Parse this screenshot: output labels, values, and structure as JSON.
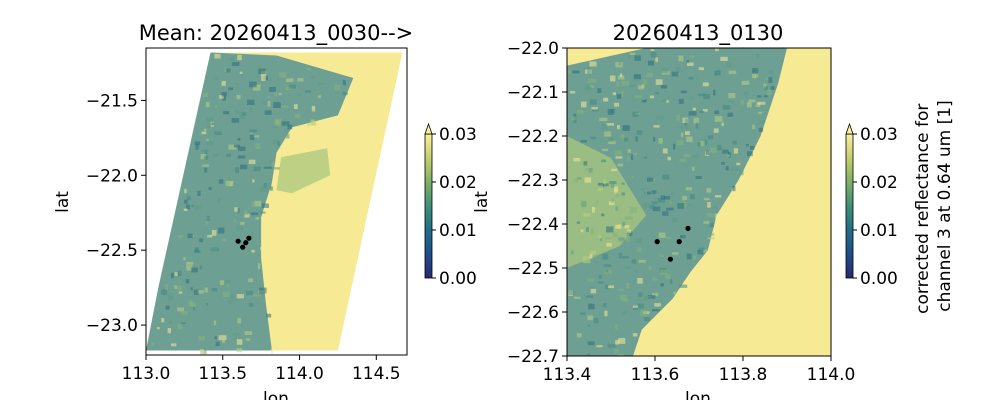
{
  "chart_data": [
    {
      "type": "heatmap",
      "title": "Mean: 20260413_0030-->",
      "xlabel": "lon",
      "ylabel": "lat",
      "xlim": [
        113.0,
        114.7
      ],
      "ylim": [
        -23.2,
        -21.15
      ],
      "x_ticks": [
        113.0,
        113.5,
        114.0,
        114.5
      ],
      "y_ticks": [
        -21.5,
        -22.0,
        -22.5,
        -23.0
      ],
      "x_tick_labels": [
        "113.0",
        "113.5",
        "114.0",
        "114.5"
      ],
      "y_tick_labels": [
        "−21.5",
        "−22.0",
        "−22.5",
        "−23.0"
      ],
      "swath_corners": [
        [
          113.42,
          -21.18
        ],
        [
          114.67,
          -21.18
        ],
        [
          114.25,
          -23.17
        ],
        [
          113.0,
          -23.17
        ]
      ],
      "cloud_band": {
        "boundary": [
          [
            113.42,
            -21.18
          ],
          [
            113.85,
            -21.2
          ],
          [
            114.35,
            -21.35
          ],
          [
            114.25,
            -21.6
          ],
          [
            113.95,
            -21.68
          ],
          [
            113.85,
            -21.85
          ],
          [
            113.82,
            -22.05
          ],
          [
            113.75,
            -22.28
          ],
          [
            113.75,
            -22.55
          ],
          [
            113.78,
            -22.85
          ],
          [
            113.82,
            -23.17
          ],
          [
            113.0,
            -23.17
          ],
          [
            113.08,
            -22.75
          ]
        ],
        "pale_patch": [
          [
            113.88,
            -21.88
          ],
          [
            114.18,
            -21.82
          ],
          [
            114.2,
            -22.0
          ],
          [
            113.95,
            -22.12
          ],
          [
            113.85,
            -22.1
          ]
        ]
      },
      "points": [
        {
          "lon": 113.6,
          "lat": -22.44
        },
        {
          "lon": 113.67,
          "lat": -22.42
        },
        {
          "lon": 113.65,
          "lat": -22.45
        },
        {
          "lon": 113.63,
          "lat": -22.48
        }
      ],
      "colorbar": {
        "min": 0.0,
        "max": 0.03,
        "ticks": [
          "0.00",
          "0.01",
          "0.02",
          "0.03"
        ],
        "extend": "max",
        "colormap": "haline",
        "label": ""
      }
    },
    {
      "type": "heatmap",
      "title": "20260413_0130",
      "xlabel": "lon",
      "ylabel": "lat",
      "xlim": [
        113.4,
        114.0
      ],
      "ylim": [
        -22.7,
        -22.0
      ],
      "x_ticks": [
        113.4,
        113.6,
        113.8,
        114.0
      ],
      "y_ticks": [
        -22.0,
        -22.1,
        -22.2,
        -22.3,
        -22.4,
        -22.5,
        -22.6,
        -22.7
      ],
      "x_tick_labels": [
        "113.4",
        "113.6",
        "113.8",
        "114.0"
      ],
      "y_tick_labels": [
        "−22.0",
        "−22.1",
        "−22.2",
        "−22.3",
        "−22.4",
        "−22.5",
        "−22.6",
        "−22.7"
      ],
      "cloud_band": {
        "boundary": [
          [
            113.4,
            -22.04
          ],
          [
            113.58,
            -22.0
          ],
          [
            113.9,
            -22.0
          ],
          [
            113.88,
            -22.08
          ],
          [
            113.84,
            -22.2
          ],
          [
            113.79,
            -22.3
          ],
          [
            113.74,
            -22.38
          ],
          [
            113.72,
            -22.46
          ],
          [
            113.68,
            -22.51
          ],
          [
            113.64,
            -22.57
          ],
          [
            113.57,
            -22.64
          ],
          [
            113.55,
            -22.7
          ],
          [
            113.4,
            -22.7
          ]
        ],
        "pale_patch": [
          [
            113.4,
            -22.2
          ],
          [
            113.5,
            -22.25
          ],
          [
            113.58,
            -22.38
          ],
          [
            113.52,
            -22.45
          ],
          [
            113.4,
            -22.5
          ]
        ]
      },
      "points": [
        {
          "lon": 113.605,
          "lat": -22.44
        },
        {
          "lon": 113.675,
          "lat": -22.41
        },
        {
          "lon": 113.655,
          "lat": -22.44
        },
        {
          "lon": 113.635,
          "lat": -22.48
        }
      ],
      "colorbar": {
        "min": 0.0,
        "max": 0.03,
        "ticks": [
          "0.00",
          "0.01",
          "0.02",
          "0.03"
        ],
        "extend": "max",
        "colormap": "haline",
        "label": "corrected reflectance for channel 3 at 0.64 um [1]"
      }
    }
  ],
  "colors": {
    "clear_background": "#f7ea95",
    "cloud_high": "#6e9f93",
    "cloud_low": "#2d6e7e",
    "points": "#000000",
    "colormap_stops": [
      "#292a71",
      "#1f4e8a",
      "#206e86",
      "#3e9178",
      "#7fb066",
      "#c5cf6c",
      "#fbee9f"
    ]
  }
}
